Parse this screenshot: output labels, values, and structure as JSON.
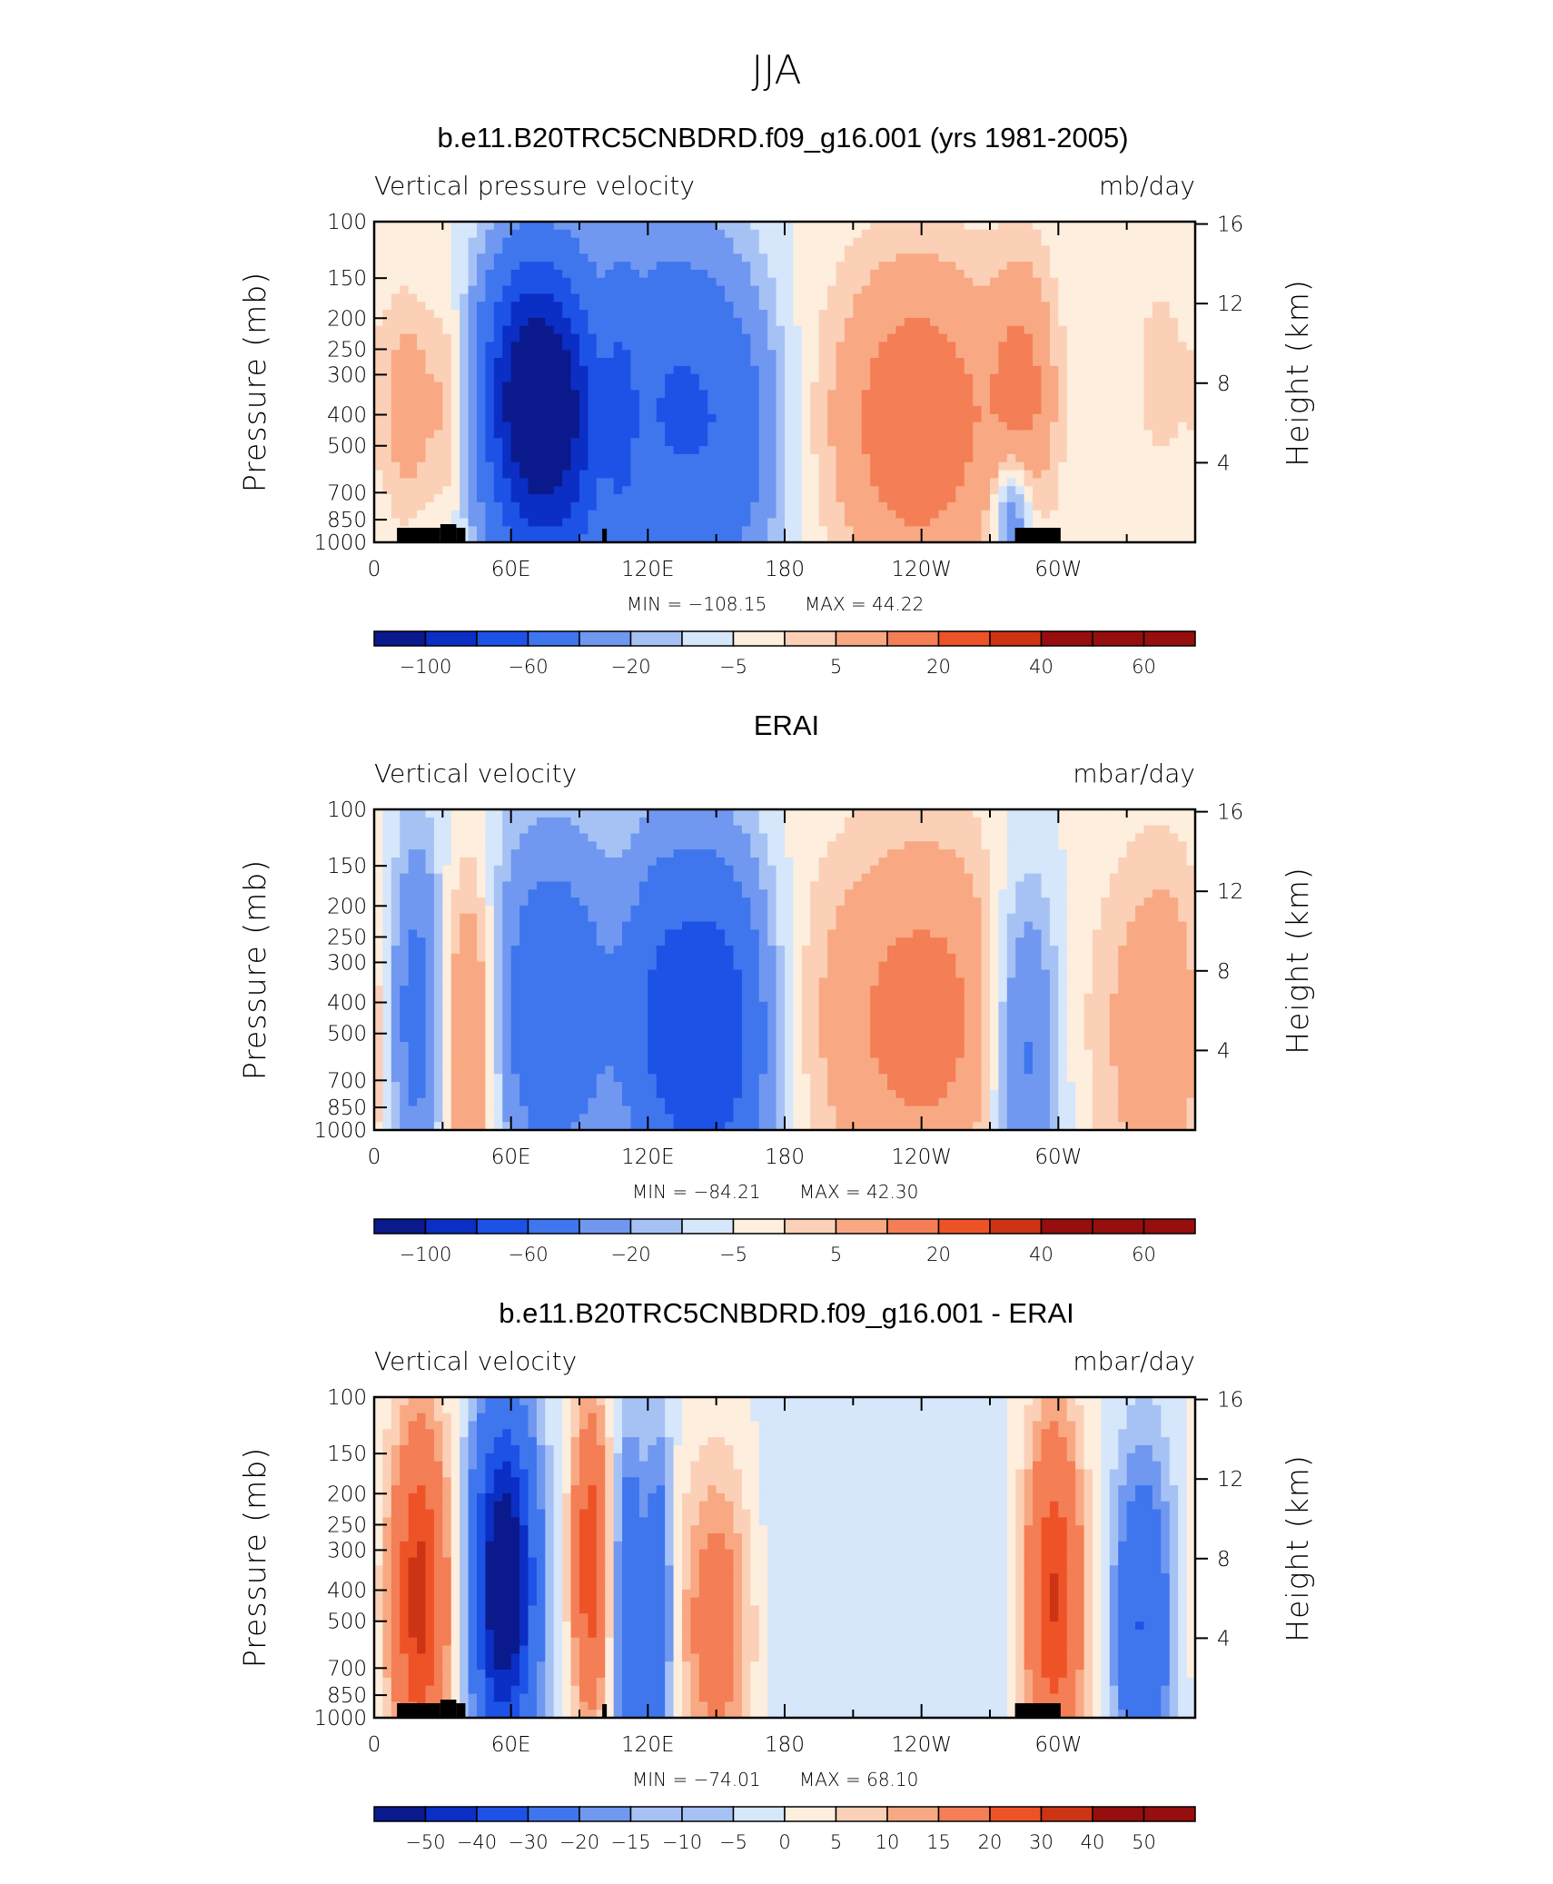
{
  "figure_title": "JJA",
  "colors": {
    "scale": [
      "#0a1a8c",
      "#0b2ec4",
      "#1d52e6",
      "#3f76ee",
      "#7098f0",
      "#a6c2f5",
      "#d6e6fb",
      "#fdeedd",
      "#fbd0b6",
      "#f8a983",
      "#f47e55",
      "#ee5327",
      "#cc3414",
      "#960e0e"
    ]
  },
  "chart_data": [
    {
      "type": "heatmap",
      "title": "b.e11.B20TRC5CNBDRD.f09_g16.001 (yrs 1981-2005)",
      "variable": "Vertical pressure velocity",
      "units": "mb/day",
      "xlabel": "",
      "ylabel": "Pressure (mb)",
      "ylabel_right": "Height (km)",
      "xticks": [
        "0",
        "60E",
        "120E",
        "180",
        "120W",
        "60W"
      ],
      "yticks": [
        "100",
        "150",
        "200",
        "250",
        "300",
        "400",
        "500",
        "700",
        "850",
        "1000"
      ],
      "yticks_right": [
        "16",
        "12",
        "8",
        "4"
      ],
      "min_label": "MIN = −108.15",
      "max_label": "MAX =   44.22",
      "min": -108.15,
      "max": 44.22,
      "colorbar_labels": [
        "−100",
        "−60",
        "−20",
        "−5",
        "5",
        "20",
        "40",
        "60"
      ],
      "colorbar_levels": [
        -100,
        -80,
        -60,
        -40,
        -20,
        -10,
        -5,
        0,
        5,
        10,
        20,
        30,
        40,
        50,
        60
      ],
      "topography": [
        [
          10,
          29,
          0.6
        ],
        [
          29,
          36,
          1.0
        ],
        [
          36,
          40,
          0.6
        ],
        [
          100,
          102,
          0.5
        ],
        [
          281,
          301,
          0.6
        ]
      ],
      "features": [
        {
          "lon": 15,
          "p": 380,
          "value": 15,
          "w": 8,
          "h": 0.5
        },
        {
          "lon": 33,
          "p": 380,
          "value": 12,
          "w": 6,
          "h": 0.5
        },
        {
          "lon": 68,
          "p": 320,
          "value": -75,
          "w": 14,
          "h": 0.6
        },
        {
          "lon": 72,
          "p": 540,
          "value": -40,
          "w": 16,
          "h": 0.7
        },
        {
          "lon": 88,
          "p": 420,
          "value": -30,
          "w": 10,
          "h": 0.7
        },
        {
          "lon": 108,
          "p": 420,
          "value": -20,
          "w": 5,
          "h": 0.7
        },
        {
          "lon": 130,
          "p": 380,
          "value": -40,
          "w": 20,
          "h": 0.8
        },
        {
          "lon": 160,
          "p": 480,
          "value": -20,
          "w": 14,
          "h": 0.7
        },
        {
          "lon": 238,
          "p": 420,
          "value": 30,
          "w": 26,
          "h": 0.75
        },
        {
          "lon": 285,
          "p": 330,
          "value": 20,
          "w": 10,
          "h": 0.6
        },
        {
          "lon": 280,
          "p": 820,
          "value": -25,
          "w": 6,
          "h": 0.3
        },
        {
          "lon": 345,
          "p": 300,
          "value": 6,
          "w": 14,
          "h": 0.8
        }
      ]
    },
    {
      "type": "heatmap",
      "title": "ERAI",
      "variable": "Vertical velocity",
      "units": "mbar/day",
      "xlabel": "",
      "ylabel": "Pressure (mb)",
      "ylabel_right": "Height (km)",
      "xticks": [
        "0",
        "60E",
        "120E",
        "180",
        "120W",
        "60W"
      ],
      "yticks": [
        "100",
        "150",
        "200",
        "250",
        "300",
        "400",
        "500",
        "700",
        "850",
        "1000"
      ],
      "yticks_right": [
        "16",
        "12",
        "8",
        "4"
      ],
      "min_label": "MIN = −84.21",
      "max_label": "MAX =   42.30",
      "min": -84.21,
      "max": 42.3,
      "colorbar_labels": [
        "−100",
        "−60",
        "−20",
        "−5",
        "5",
        "20",
        "40",
        "60"
      ],
      "colorbar_levels": [
        -100,
        -80,
        -60,
        -40,
        -20,
        -10,
        -5,
        0,
        5,
        10,
        20,
        30,
        40,
        50,
        60
      ],
      "topography": [],
      "features": [
        {
          "lon": 18,
          "p": 450,
          "value": -30,
          "w": 9,
          "h": 0.8
        },
        {
          "lon": 42,
          "p": 500,
          "value": 28,
          "w": 9,
          "h": 0.75
        },
        {
          "lon": 78,
          "p": 420,
          "value": -35,
          "w": 20,
          "h": 0.8
        },
        {
          "lon": 125,
          "p": 450,
          "value": -30,
          "w": 12,
          "h": 0.8
        },
        {
          "lon": 150,
          "p": 500,
          "value": -55,
          "w": 16,
          "h": 0.8
        },
        {
          "lon": 240,
          "p": 450,
          "value": 25,
          "w": 34,
          "h": 0.85
        },
        {
          "lon": 285,
          "p": 560,
          "value": -30,
          "w": 11,
          "h": 0.8
        },
        {
          "lon": 345,
          "p": 500,
          "value": 18,
          "w": 18,
          "h": 0.85
        }
      ]
    },
    {
      "type": "heatmap",
      "title": "b.e11.B20TRC5CNBDRD.f09_g16.001 - ERAI",
      "variable": "Vertical velocity",
      "units": "mbar/day",
      "xlabel": "",
      "ylabel": "Pressure (mb)",
      "ylabel_right": "Height (km)",
      "xticks": [
        "0",
        "60E",
        "120E",
        "180",
        "120W",
        "60W"
      ],
      "yticks": [
        "100",
        "150",
        "200",
        "250",
        "300",
        "400",
        "500",
        "700",
        "850",
        "1000"
      ],
      "yticks_right": [
        "16",
        "12",
        "8",
        "4"
      ],
      "min_label": "MIN = −74.01",
      "max_label": "MAX =   68.10",
      "min": -74.01,
      "max": 68.1,
      "colorbar_labels": [
        "−50",
        "−40",
        "−30",
        "−20",
        "−15",
        "−10",
        "−5",
        "0",
        "5",
        "10",
        "15",
        "20",
        "30",
        "40",
        "50"
      ],
      "colorbar_levels": [
        -60,
        -50,
        -40,
        -30,
        -20,
        -15,
        -10,
        -5,
        0,
        5,
        10,
        15,
        20,
        30,
        40,
        50,
        60
      ],
      "topography": [
        [
          10,
          29,
          0.6
        ],
        [
          29,
          36,
          1.0
        ],
        [
          36,
          40,
          0.6
        ],
        [
          100,
          102,
          0.5
        ],
        [
          281,
          301,
          0.6
        ]
      ],
      "features": [
        {
          "lon": 20,
          "p": 420,
          "value": 45,
          "w": 9,
          "h": 0.8
        },
        {
          "lon": 57,
          "p": 380,
          "value": -65,
          "w": 10,
          "h": 0.8
        },
        {
          "lon": 95,
          "p": 330,
          "value": 40,
          "w": 6,
          "h": 0.7
        },
        {
          "lon": 112,
          "p": 520,
          "value": -30,
          "w": 5,
          "h": 0.85
        },
        {
          "lon": 125,
          "p": 500,
          "value": -25,
          "w": 4,
          "h": 0.85
        },
        {
          "lon": 150,
          "p": 500,
          "value": 25,
          "w": 12,
          "h": 0.75
        },
        {
          "lon": 200,
          "p": 400,
          "value": -5,
          "w": 60,
          "h": 0.9
        },
        {
          "lon": 298,
          "p": 420,
          "value": 42,
          "w": 9,
          "h": 0.8
        },
        {
          "lon": 337,
          "p": 520,
          "value": -30,
          "w": 9,
          "h": 0.8
        }
      ]
    }
  ]
}
